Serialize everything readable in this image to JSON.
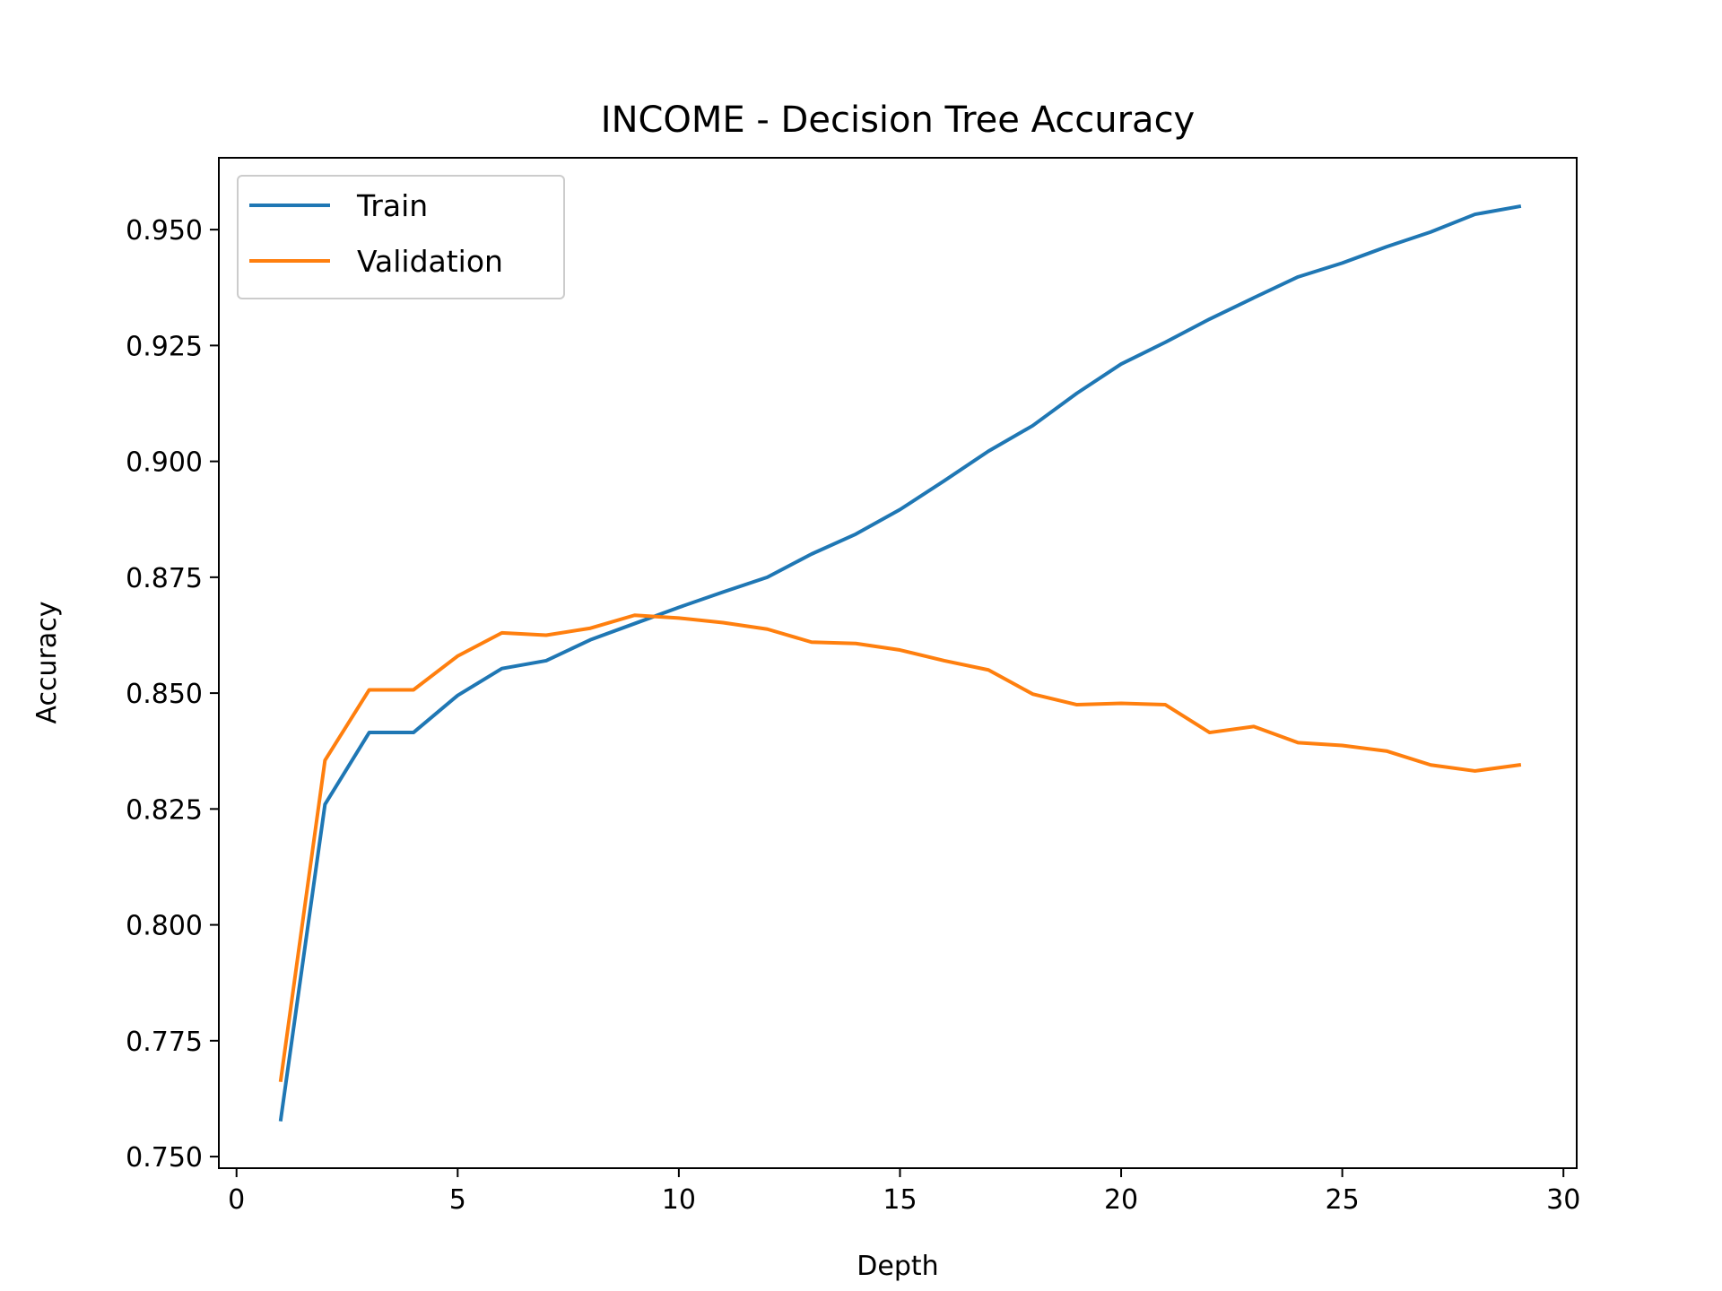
{
  "chart_data": {
    "type": "line",
    "title": "INCOME - Decision Tree Accuracy",
    "xlabel": "Depth",
    "ylabel": "Accuracy",
    "xlim": [
      -0.4,
      30.3
    ],
    "ylim": [
      0.7475,
      0.9655
    ],
    "xticks": [
      0,
      5,
      10,
      15,
      20,
      25,
      30
    ],
    "yticks": [
      0.75,
      0.775,
      0.8,
      0.825,
      0.85,
      0.875,
      0.9,
      0.925,
      0.95
    ],
    "ytick_labels": [
      "0.750",
      "0.775",
      "0.800",
      "0.825",
      "0.850",
      "0.875",
      "0.900",
      "0.925",
      "0.950"
    ],
    "xtick_labels": [
      "0",
      "5",
      "10",
      "15",
      "20",
      "25",
      "30"
    ],
    "grid": false,
    "legend_position": "upper-left",
    "x": [
      1,
      2,
      3,
      4,
      5,
      6,
      7,
      8,
      9,
      10,
      11,
      12,
      13,
      14,
      15,
      16,
      17,
      18,
      19,
      20,
      21,
      22,
      23,
      24,
      25,
      26,
      27,
      28,
      29
    ],
    "series": [
      {
        "name": "Train",
        "color": "#1f77b4",
        "values": [
          0.758,
          0.826,
          0.8415,
          0.8415,
          0.8495,
          0.8553,
          0.857,
          0.8615,
          0.865,
          0.8685,
          0.8718,
          0.875,
          0.88,
          0.8843,
          0.8896,
          0.8958,
          0.9022,
          0.9077,
          0.9147,
          0.921,
          0.9257,
          0.9307,
          0.9353,
          0.9398,
          0.9428,
          0.9463,
          0.9495,
          0.9533,
          0.955
        ]
      },
      {
        "name": "Validation",
        "color": "#ff7f0e",
        "values": [
          0.7665,
          0.8355,
          0.8507,
          0.8507,
          0.858,
          0.863,
          0.8625,
          0.864,
          0.8668,
          0.8662,
          0.8652,
          0.8638,
          0.861,
          0.8607,
          0.8593,
          0.857,
          0.855,
          0.8498,
          0.8475,
          0.8478,
          0.8475,
          0.8415,
          0.8428,
          0.8393,
          0.8387,
          0.8375,
          0.8345,
          0.8332,
          0.8345
        ]
      }
    ]
  }
}
